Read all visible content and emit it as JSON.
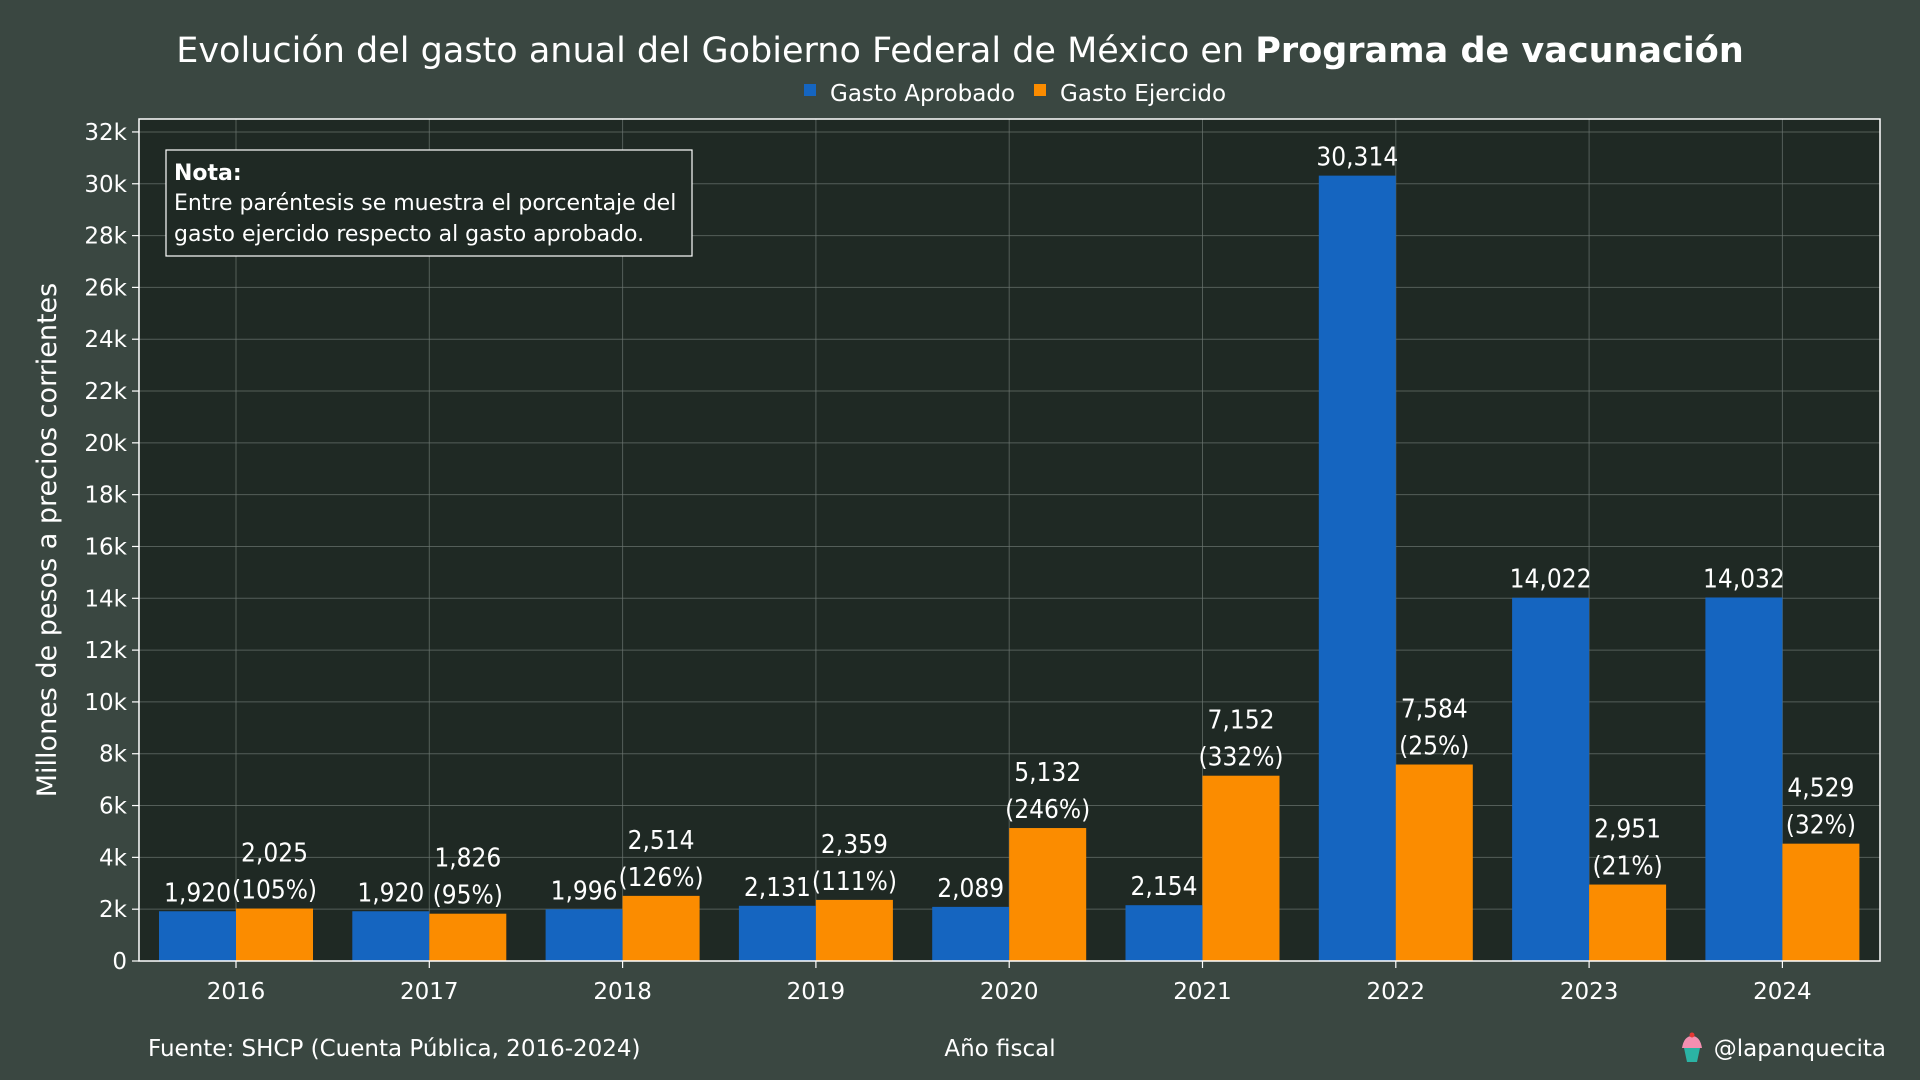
{
  "colors": {
    "background": "#3a4741",
    "plot_background": "#1f2924",
    "approved": "#1565c0",
    "executed": "#fb8c00",
    "grid": "#6b7570",
    "text": "#ffffff"
  },
  "title": {
    "prefix": "Evolución del gasto anual del Gobierno Federal de México en ",
    "bold": "Programa de vacunación"
  },
  "note": {
    "title": "Nota:",
    "line1": "Entre paréntesis se muestra el porcentaje del",
    "line2": "gasto ejercido respecto al gasto aprobado."
  },
  "footer": {
    "source": "Fuente: SHCP (Cuenta Pública, 2016-2024)",
    "handle": "@lapanquecita",
    "handle_icon": "cupcake-icon"
  },
  "chart_data": {
    "type": "bar",
    "xlabel": "Año fiscal",
    "ylabel": "Millones de pesos a precios corrientes",
    "categories": [
      "2016",
      "2017",
      "2018",
      "2019",
      "2020",
      "2021",
      "2022",
      "2023",
      "2024"
    ],
    "ylim": [
      0,
      32500
    ],
    "yticks": [
      0,
      2000,
      4000,
      6000,
      8000,
      10000,
      12000,
      14000,
      16000,
      18000,
      20000,
      22000,
      24000,
      26000,
      28000,
      30000,
      32000
    ],
    "ytick_labels": [
      "0",
      "2k",
      "4k",
      "6k",
      "8k",
      "10k",
      "12k",
      "14k",
      "16k",
      "18k",
      "20k",
      "22k",
      "24k",
      "26k",
      "28k",
      "30k",
      "32k"
    ],
    "grid": true,
    "legend_position": "top-center",
    "series": [
      {
        "name": "Gasto Aprobado",
        "values": [
          1920,
          1920,
          1996,
          2131,
          2089,
          2154,
          30314,
          14022,
          14032
        ],
        "labels": [
          "1,920",
          "1,920",
          "1,996",
          "2,131",
          "2,089",
          "2,154",
          "30,314",
          "14,022",
          "14,032"
        ]
      },
      {
        "name": "Gasto Ejercido",
        "values": [
          2025,
          1826,
          2514,
          2359,
          5132,
          7152,
          7584,
          2951,
          4529
        ],
        "labels": [
          "2,025",
          "1,826",
          "2,514",
          "2,359",
          "5,132",
          "7,152",
          "7,584",
          "2,951",
          "4,529"
        ],
        "percent_labels": [
          "(105%)",
          "(95%)",
          "(126%)",
          "(111%)",
          "(246%)",
          "(332%)",
          "(25%)",
          "(21%)",
          "(32%)"
        ]
      }
    ]
  }
}
